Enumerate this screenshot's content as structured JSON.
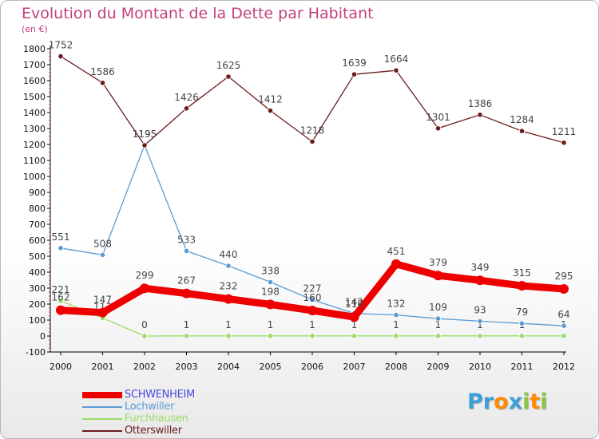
{
  "chart_data": {
    "type": "line",
    "title": "Evolution du Montant de la Dette par Habitant",
    "subtitle": "(en €)",
    "x": [
      "2000",
      "2001",
      "2002",
      "2003",
      "2004",
      "2005",
      "2006",
      "2007",
      "2008",
      "2009",
      "2010",
      "2011",
      "2012"
    ],
    "ylim": [
      -100,
      1800
    ],
    "yticks": [
      -100,
      0,
      100,
      200,
      300,
      400,
      500,
      600,
      700,
      800,
      900,
      1000,
      1100,
      1200,
      1300,
      1400,
      1500,
      1600,
      1700,
      1800
    ],
    "grid": false,
    "legend_position": "bottom-left",
    "series": [
      {
        "name": "SCHWENHEIM",
        "color": "#ee0000",
        "values": [
          162,
          147,
          299,
          267,
          232,
          198,
          160,
          119,
          451,
          379,
          349,
          315,
          295
        ]
      },
      {
        "name": "Lochwiller",
        "color": "#5a9bd5",
        "values": [
          551,
          508,
          1195,
          533,
          440,
          338,
          227,
          142,
          132,
          109,
          93,
          79,
          64
        ]
      },
      {
        "name": "Furchhausen",
        "color": "#99dd66",
        "values": [
          221,
          113,
          0,
          1,
          1,
          1,
          1,
          1,
          1,
          1,
          1,
          1,
          1
        ]
      },
      {
        "name": "Otterswiller",
        "color": "#6b1b1b",
        "values": [
          1752,
          1586,
          1195,
          1426,
          1625,
          1412,
          1218,
          1639,
          1664,
          1301,
          1386,
          1284,
          1211
        ]
      }
    ]
  },
  "logo": {
    "letters": [
      "P",
      "r",
      "o",
      "x",
      "i",
      "t",
      "i"
    ],
    "colors": [
      "#3aa0d8",
      "#3aa0d8",
      "#ff8a00",
      "#3aa0d8",
      "#88c540",
      "#ff8a00",
      "#88c540"
    ]
  }
}
